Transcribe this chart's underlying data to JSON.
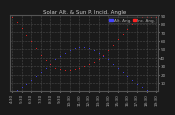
{
  "title": "Solar Alt. & Sun P. Incid. Angle",
  "legend_alt_label": "Alt. Ang.",
  "legend_inc_label": "Inc. Ang.",
  "background_color": "#1a1a1a",
  "plot_bg_color": "#1a1a1a",
  "title_color": "#cccccc",
  "tick_color": "#aaaaaa",
  "blue_color": "#4444ff",
  "red_color": "#ff2222",
  "legend_box_color1": "#ff0000",
  "legend_box_color2": "#0000cc",
  "grid_color": "#555555",
  "ylim": [
    0,
    90
  ],
  "yticks": [
    10,
    20,
    30,
    40,
    50,
    60,
    70,
    80,
    90
  ],
  "time_hours": [
    4.5,
    5.0,
    5.5,
    6.0,
    6.5,
    7.0,
    7.5,
    8.0,
    8.5,
    9.0,
    9.5,
    10.0,
    10.5,
    11.0,
    11.5,
    12.0,
    12.5,
    13.0,
    13.5,
    14.0,
    14.5,
    15.0,
    15.5,
    16.0,
    16.5,
    17.0,
    17.5,
    18.0,
    18.5,
    19.0,
    19.5
  ],
  "sun_altitude": [
    0,
    2,
    5,
    9,
    13,
    18,
    23,
    28,
    33,
    38,
    42,
    46,
    49,
    51,
    52,
    52,
    51,
    49,
    46,
    42,
    38,
    33,
    28,
    23,
    18,
    13,
    9,
    5,
    2,
    0,
    0
  ],
  "sun_incidence": [
    88,
    82,
    75,
    67,
    59,
    51,
    43,
    37,
    32,
    28,
    26,
    25,
    25,
    26,
    28,
    30,
    32,
    35,
    38,
    43,
    49,
    55,
    62,
    68,
    74,
    80,
    85,
    88,
    88,
    88,
    88
  ],
  "xtick_labels": [
    "4:30",
    "5:30",
    "6:30",
    "7:30",
    "8:30",
    "9:30",
    "10:30",
    "11:30",
    "12:30",
    "13:30",
    "14:30",
    "15:30",
    "16:30",
    "17:30",
    "18:30",
    "19:30"
  ],
  "xtick_positions": [
    4.5,
    5.5,
    6.5,
    7.5,
    8.5,
    9.5,
    10.5,
    11.5,
    12.5,
    13.5,
    14.5,
    15.5,
    16.5,
    17.5,
    18.5,
    19.5
  ],
  "xlim": [
    4.3,
    19.7
  ],
  "marker_size": 1.5,
  "title_fontsize": 4.0,
  "tick_fontsize": 3.0,
  "legend_fontsize": 3.0
}
